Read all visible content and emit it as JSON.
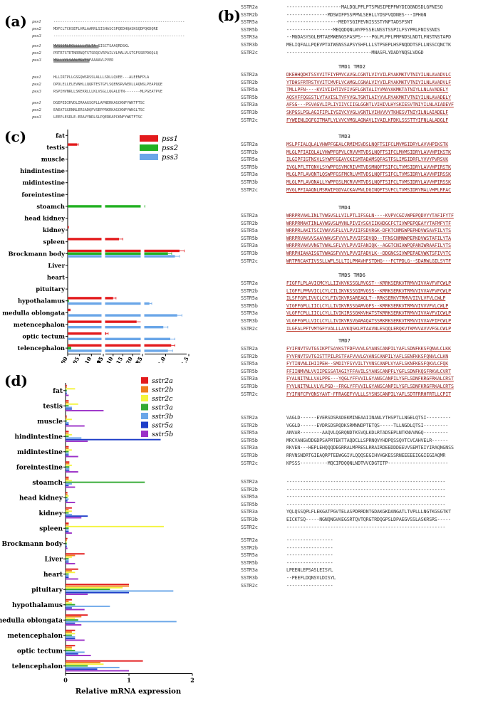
{
  "panel_a": {
    "label": "(a)",
    "names": [
      "pss1",
      "pss2",
      "pss3"
    ],
    "blocks": [
      [
        "-----------------------------------------------------------",
        "MDFCLTCKSEFLHRLAARRLSISHASCSPQEDHQASKGQDPQKDQRE",
        "-----------------------------------------------------------"
      ],
      [
        "MVSSSRLRCLLLLLVSLTA SISCTSAAQRDSKL",
        "PRTRTSTRTNRRNQTSTSRQCVRPAILVLMALVLSTGFSSEPDKQLQ",
        "MSLLVVLSAALMGVFSFAAAAVLPVED"
      ],
      [
        "HLLIRTPLLGSGQWSRSSLALLLSDLLQVEE---ALEENFPLA",
        "DPDLELLELEVNHLLQQRTESTGFLSQENSRVAEDLLAQNSLPEAPQQE",
        "RSPIHVNRLLSKEKRLLLKLVSGLLQGALDTN-------MLPGEATPVE"
      ],
      [
        "DGEPEDIRVDLIRAAGSGPLLAPNERKAGCKNFYWKTFTSC",
        "EAEATGGRNNLERSADQPVSEPPRKRKAGCKNFYWKGLTSC",
        "LEEPLESRLE-ERAVYNRLSLPQERKAPCKNFYWKTFTSC"
      ]
    ]
  },
  "panel_b": {
    "label": "(b)",
    "names": [
      "SSTR2a",
      "SSTR2b",
      "SSTR5a",
      "SSTR5b",
      "SSTR3a",
      "SSTR3b",
      "SSTR2c"
    ],
    "blocks": [
      {
        "tmd": "",
        "seqs": [
          "--------------------MALDQLPFLPTSPNSIPEPFWYDIQGNDSDLGFNISQ",
          "---------------MDSWIFPSSPPNLSEHLLYDSFVQDNES---IPHGN",
          "-------------------MEDYSGIFEVNISSSTYNFTADSFSNT",
          "-----------------MEQQDQNLWYPFSSELNSSTSSPILFSYPRLFNISSNIS",
          "--MGDASYSGLEMTAEMWENGSFASPS----PGLPLPFLPMFNDSLNDTLFNSTNSTAPD",
          "MELIQFALLPQEVPTATWSNSSAPSYSHFLLLSTPSEPLHSFNQDDTSFLLNSSCQNCTK",
          "-------------------------------MNASFLYDADYNQSLVDGD"
        ]
      },
      {
        "tmd": "TMD1                           TMD2",
        "seqs": [
          "DKEHHQDKTSSVVITFIYFMVCAVGLCGNTLVIYVILRYAKMKTVTNIYILNLAVADVLC",
          "YTDHSFRTRSTVVITCMVFLVCAMGLCGNALVIYVILRYAKMKTVTNIYILNLAVADVLF",
          "TMLLPFN----KVIVIIHTIVFIVGFLGNTALIYVMAYAKMKTATNIYLLNLAVADELY",
          "AQSVFFQGSSTLVTAVISLTVFVVGLTGNTLAIYVVLRYAKMKTVTNIYILNLAVADELY",
          "AFSG---PSVAGVLIPLIYIIVCIIGLGGNTLVIHIVLHYSKIESVTNIYILNLAIADEVF",
          "SKPGSLPGLAGIFIPLIYGIVCVVGLVGNTLVIHVVVYTKHESVTNIYILNLAIADELF",
          "FYWEENLDGFGITMAFLYLVVCVMGLAGNAVLIVAILKFDKLSSSTTYIFNLALADGLF"
        ]
      },
      {
        "tmd": "TMD3",
        "seqs": [
          "MSLPFIALQLALVHWPFGEALCRMIMSVDSLNQFTSIFCLMVMSIDRYLAVVHPIKSTK",
          "MLGLPFIAIQLALVHWPFGPVLCRVVMTVDSLNQFTSIFCLMVMSIDRYLAVVHPIKSTK",
          "ILGIPFIGTNSVLSYWPFGEAVCKISMTADAMSQFASTFSLIMSIDRFLYVVYPVRSVK",
          "IVGLPFLTTQNVLSYWPFGSVMCRIVMTVDSMNQFTSIFCLTVMSIDRYLAVVHPIRSTK",
          "MLGLPFLAVQNTLQSWPFGSFMCRLVMTVDSLNQFTSIFCLTVMSIDRYLAVVHPIRSSK",
          "MLGLPFLAVQNALLYWPFGSLMCRVVMTVDSLNQFTSIFCLTVMSIDRYLAVVHPIRSSK",
          "MVGLPFIAAQNLMSRWIFGDVACKAVMVLDGINQFTSVFCLTVMSIDRYMALVHPLRFAC"
        ]
      },
      {
        "tmd": "TMD4",
        "seqs": [
          "WRRPRVAKLINLTVWGVSLLVILPTLIFSGLN----KVPVCGIVWPEPQDVYYTAFIFYTF",
          "WRRPRMAKTINLAVWGVSLMVNLPIVIYSGVIIKHDGCFCTIVWPEPQEAYYTAFMFYTF",
          "WRRPRLAKITSCIVWVVSFLLVLPVIIFSDVRGK-DFKTCNMSWPEPHDVWSAVFILYTS",
          "WRRPRVAKVVSAAVWAVSFVVVLPVVIFSDVQD--TFNSCNMNWPEPKDVWSTAFILYTA",
          "WRRPRVAKVVNGTVWALSFLVVLPVVIFANIQK--AGGTCNIAWPQPANIWRAAFILYTS",
          "WRRPHIAKAISGTVWAGSFVVVLPVVIFADVLK--DDGNCSIVWPEPAEVWKTSFIVYTC",
          "WRTPRCAKTIVSSLLWFLSLLTILPMAVHFSTDHG---FCTPDLG--SDARWLGILSYTF"
        ]
      },
      {
        "tmd": "TMD5                          TMD6",
        "seqs": [
          "FIGFFLPLAVICMCYLLIIVKVKSSGLRVGST--KRRKSERKVTRMVVIVVAVFVFCWLP",
          "LIGFFLPMVVICLCYLCILIKVKSSGIRVGSS--KRRKSERKVTRMVVIVVAVFVFCWLP",
          "ILSFFGPLIVVCLCYLFIVIKVRSAREAGLT--RRKSERKVTRMVVIIVLVFVLCWLP",
          "VIGFFGPLLIICLCYLLIVIKVRSSGARVGFS--KRRKSERKVTRMVVIVVVFVLCWLP",
          "VLGFFCPLLIICLCYLLIVIKIRSSGKKVHATSTKRRKSERKVTRMVVIVVAVFVICWLP",
          "VLGFFGPLLVICLCYLLIVIKVRSVGARAQATSSRKRKSERKVTRMVVIVVAVFIFCWLP",
          "ILGFALPFTVMTGFYVALLLAVKQSKLRTAAVNLESQQLERQKVTKMVVAVVVFGLCWLP"
        ]
      },
      {
        "tmd": "TMD7",
        "seqs": [
          "FYIFNVTSVTGSIKPTSAYKSTFDFVVVLGYANSCANPILYAFLSDNFKKSFQNVLCLKK",
          "FYVFNVTSVTGISTTPILRSTFAFVVVLGYANSCANPILYAFLSENFKKSFQNVLCLKN",
          "FYTINVNLIHIIPEH--SMDIYFSYVILTYVNSCANPLVYAFLSKNFKESFQKVLCFQK",
          "FFIINMVNLVVIIPESSATAGIYFFAVILSYANSCANPFLYGFLSDNFKQSFRKVLCVRT",
          "FYALNITNLLVALPPE---YQGLYFFVVILGYANSCANPILYGFLSDNFKRGFRKALCRST",
          "FYVLNITNLLVLVLPGD--FRGLYFFVVILGYANSCANPILYGFLSDNFKRGFRKALCRTS",
          "FYIFNFCPYQNSYAVT-FFRAGEFYVLLLSYSNSCANPILYAFLSDTFRRHFRTLLCPIT"
        ]
      },
      {
        "tmd": "",
        "seqs": [
          "VAGLD------EVERSDSRADEKMINEAAIINANLYTHSPTLLNGELQTSI---------",
          "VGGLD------EVDRSDSRQDKSRMNNDPTETQS-----TLLNGDLQTSI---------",
          "ANVAR--------AAQVLQGRQNDTKSVQLKDLRTADSEPLNTKNVVNGQ---------",
          "MRCVANGVDDGDPSAPRTEKTTAQDCLLSPRNQVYHDPQSSQVTCVCAHVELR------",
          "RKVEN---HEPLEHQQQDEGRRALMPRESLRRAIRDEEDDDEEVVSEMTEIYIRAQNGNSS",
          "RRVNSNDRTGIEAQRPTEEWGGIVLQQQSEGIHVHGKESSRNEEEEEIGGIEGIAQMR",
          "KPSSS----------MQCIPDQQNLNDTVVCDGTITP----------------------"
        ]
      },
      {
        "tmd": "",
        "seqs": [
          "----------------------------------------------------------",
          "----------------------------------------------------------",
          "----------------------------------------------------------",
          "----------------------------------------------------------",
          "YQLQSSQPLFLEKGATPGVTELASPDRRDNTGDAKGKDANGATLTVPLLLNGTKGSGTKT",
          "EICKTSQ-----NGNQNGVKEGSRTQVTQRGTRDQGPSLDPAEGVSSLASKRSRS-----",
          "----------------------------------------------------------"
        ]
      },
      {
        "tmd": "",
        "seqs": [
          "-----------------",
          "-----------------",
          "-----------------",
          "-----------------",
          "LPEENLEPSASLEISYL",
          "--PEEFLDQNSVLDISYL",
          "-----------------"
        ]
      }
    ]
  },
  "panel_c": {
    "label": "(c)",
    "chart_data": {
      "type": "bar",
      "orientation": "horizontal",
      "title": "",
      "xlabel": "Relative mRNA expression",
      "ylabel": "",
      "categories": [
        "fat",
        "testis",
        "muscle",
        "hindintestine",
        "midintestine",
        "foreintestine",
        "stoamch",
        "head kidney",
        "kidney",
        "spleen",
        "Brockmann body",
        "Liver",
        "heart",
        "pituitary",
        "hypothalamus",
        "medulla oblongata",
        "metencephalon",
        "optic tectum",
        "telencephalon"
      ],
      "series": [
        {
          "name": "pss1",
          "color": "#e31a1c",
          "values": [
            0,
            0.004,
            0,
            0,
            0,
            0,
            0,
            0,
            0.0005,
            0.13,
            1.3,
            0,
            0,
            0,
            0.1,
            0.0012,
            0.22,
            0.065,
            1.12
          ]
        },
        {
          "name": "pss2",
          "color": "#22b022",
          "values": [
            0,
            0,
            0,
            0,
            0,
            0,
            0.5,
            0,
            0,
            0,
            1.05,
            0,
            0,
            0,
            0.0005,
            0,
            0,
            0,
            0.0015
          ]
        },
        {
          "name": "pss3",
          "color": "#6aa6e8",
          "values": [
            0,
            0,
            0,
            0,
            0,
            0,
            0,
            0,
            0,
            0,
            1.2,
            0,
            0,
            0,
            0.65,
            1.25,
            0.95,
            1.1,
            1.05
          ]
        }
      ],
      "errors": {
        "pss1": [
          0,
          0.0005,
          0,
          0,
          0,
          0,
          0,
          0,
          0,
          0.02,
          0.1,
          0,
          0,
          0,
          0.015,
          0,
          0.03,
          0.01,
          0.08
        ],
        "pss2": [
          0,
          0,
          0,
          0,
          0,
          0,
          0.05,
          0,
          0,
          0,
          0.08,
          0,
          0,
          0,
          0,
          0,
          0,
          0,
          0
        ],
        "pss3": [
          0,
          0,
          0,
          0,
          0,
          0,
          0,
          0,
          0,
          0,
          0.1,
          0,
          0,
          0,
          0.05,
          0.1,
          0.1,
          0.1,
          0.1
        ]
      },
      "axis_segments": [
        {
          "min": 0,
          "max": 0.015,
          "ticks": [
            "0.000",
            "0.005",
            "0.010",
            "0.015"
          ]
        },
        {
          "min": 0.05,
          "max": 0.25,
          "ticks": [
            "0.05",
            "0.10",
            "0.15",
            "0.20",
            "0.25"
          ]
        },
        {
          "min": 0.5,
          "max": 1.5,
          "ticks": [
            "0.5",
            "1.0",
            "1.5"
          ]
        }
      ],
      "legend_position": "top-right"
    }
  },
  "panel_d": {
    "label": "(d)",
    "chart_data": {
      "type": "bar",
      "orientation": "horizontal",
      "title": "",
      "xlabel": "Relative mRNA expression",
      "ylabel": "",
      "xlim": [
        0,
        2
      ],
      "xticks": [
        "0",
        "1",
        "2"
      ],
      "categories": [
        "fat",
        "testis",
        "muscle",
        "hindintestine",
        "midintestine",
        "foreintestine",
        "stoamch",
        "head kidney",
        "kidney",
        "spleen",
        "Brockmann body",
        "Liver",
        "heart",
        "pituitary",
        "hypothalamus",
        "medulla oblongata",
        "metencephalon",
        "optic tectum",
        "telencephalon"
      ],
      "series": [
        {
          "name": "sstr2a",
          "color": "#e31a1c",
          "values": [
            0.02,
            0.05,
            0.02,
            0.05,
            0.05,
            0.06,
            0.05,
            0.03,
            0.1,
            0.05,
            0.03,
            0.3,
            0.2,
            1.0,
            0.1,
            0.35,
            0.15,
            0.15,
            1.22
          ]
        },
        {
          "name": "sstr2b",
          "color": "#f07e1e",
          "values": [
            0.02,
            0.05,
            0.02,
            0.05,
            0.05,
            0.06,
            0.05,
            0.03,
            0.05,
            0.05,
            0.02,
            0.15,
            0.1,
            1.0,
            0.05,
            0.25,
            0.1,
            0.1,
            0.55
          ]
        },
        {
          "name": "sstr2c",
          "color": "#f4f43c",
          "values": [
            0.15,
            0.2,
            0.1,
            0.1,
            0.1,
            0.1,
            0.1,
            0.05,
            0.1,
            1.55,
            0.02,
            0.1,
            0.15,
            0.9,
            0.1,
            0.15,
            0.15,
            0.1,
            0.6
          ]
        },
        {
          "name": "sstr3a",
          "color": "#33aa33",
          "values": [
            0.02,
            0.05,
            0.02,
            0.05,
            0.05,
            0.06,
            1.25,
            0.03,
            0.05,
            0.05,
            0.02,
            0.05,
            0.05,
            0.7,
            0.15,
            0.2,
            0.1,
            0.15,
            0.35
          ]
        },
        {
          "name": "sstr3b",
          "color": "#6aa6e8",
          "values": [
            0.02,
            0.1,
            0.05,
            0.25,
            0.05,
            0.06,
            0.1,
            0.05,
            0.1,
            0.05,
            0.02,
            0.05,
            0.05,
            1.7,
            0.7,
            1.75,
            0.15,
            0.3,
            0.85
          ]
        },
        {
          "name": "sstr5a",
          "color": "#1e3ec8",
          "values": [
            0.02,
            0.1,
            0.05,
            1.5,
            0.05,
            0.06,
            0.05,
            0.03,
            0.35,
            0.05,
            0.02,
            0.05,
            0.05,
            1.0,
            0.1,
            0.15,
            0.15,
            0.2,
            0.5
          ]
        },
        {
          "name": "sstr5b",
          "color": "#9b30c8",
          "values": [
            0.05,
            0.6,
            0.3,
            0.35,
            0.2,
            0.2,
            0.15,
            0.15,
            0.25,
            0.1,
            0.03,
            0.15,
            0.2,
            0.35,
            0.3,
            0.25,
            0.3,
            0.4,
            1.0
          ]
        }
      ],
      "legend_position": "top-right"
    }
  }
}
